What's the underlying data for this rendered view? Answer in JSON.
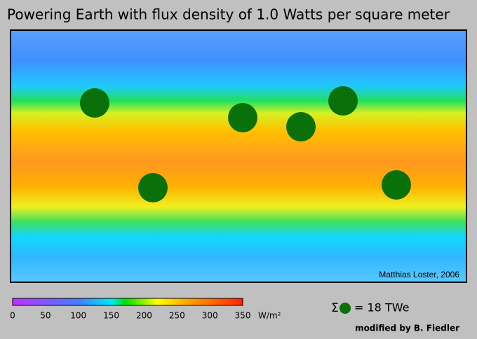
{
  "title": "Powering Earth with flux density of 1.0 Watts per square meter",
  "map": {
    "credit": "Matthias Loster, 2006"
  },
  "colorbar": {
    "ticks": [
      0,
      50,
      100,
      150,
      200,
      250,
      300,
      350
    ],
    "unit": "W/m²"
  },
  "legend": {
    "symbol": "Σ",
    "text": "= 18 TWe"
  },
  "footer": "modified by B. Fiedler"
}
